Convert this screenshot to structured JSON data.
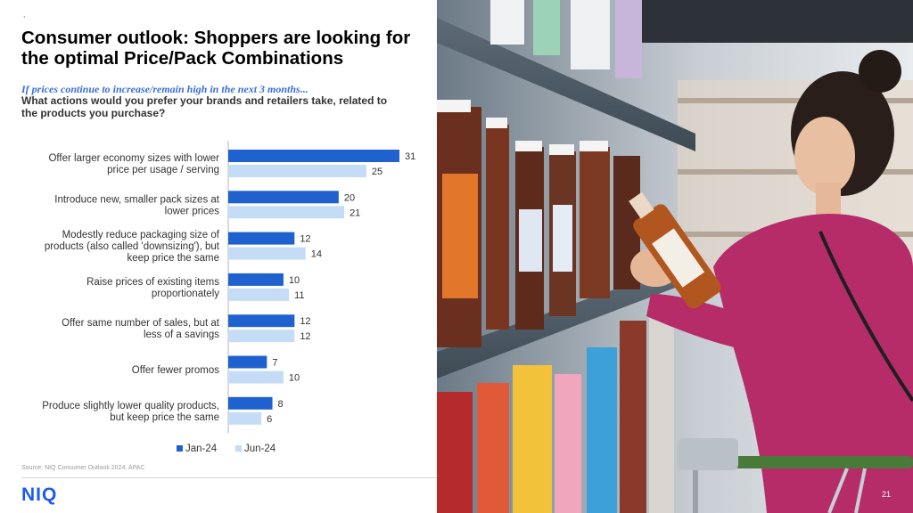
{
  "slide": {
    "tick_mark": ",",
    "title": "Consumer outlook: Shoppers are looking for the optimal Price/Pack Combinations",
    "subtitle": "If prices continue to increase/remain high in the next 3 months...",
    "question": "What actions would you prefer your brands and retailers take, related to the products you purchase?",
    "source": "Source: NIQ Consumer Outlook 2024, APAC",
    "logo": "NIQ",
    "page_number": "21"
  },
  "colors": {
    "jan": "#1f62cf",
    "jun": "#c5dcf6",
    "axis": "#b5b5b5",
    "logo": "#1d5ce8"
  },
  "photo": {
    "description_icon": "shopper-photo"
  },
  "chart_data": {
    "type": "bar",
    "orientation": "horizontal",
    "categories": [
      [
        "Offer larger economy sizes with lower",
        "price per usage / serving"
      ],
      [
        "Introduce new, smaller pack sizes at",
        "lower prices"
      ],
      [
        "Modestly reduce packaging size of",
        "products (also called 'downsizing'), but",
        "keep price the same"
      ],
      [
        "Raise prices of existing items",
        "proportionately"
      ],
      [
        "Offer same number of sales, but at",
        "less of a savings"
      ],
      [
        "Offer fewer promos"
      ],
      [
        "Produce slightly lower quality products,",
        "but keep price the same"
      ]
    ],
    "series": [
      {
        "name": "Jan-24",
        "values": [
          31,
          20,
          12,
          10,
          12,
          7,
          8
        ]
      },
      {
        "name": "Jun-24",
        "values": [
          25,
          21,
          14,
          11,
          12,
          10,
          6
        ]
      }
    ],
    "xlim": [
      0,
      35
    ],
    "grid": false,
    "legend_position": "bottom"
  }
}
